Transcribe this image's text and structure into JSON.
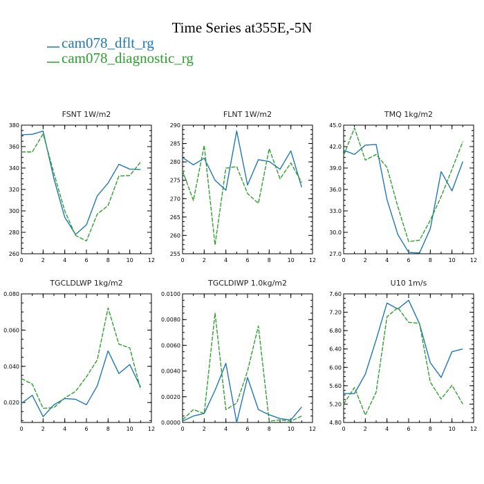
{
  "title": "Time Series at355E,-5N",
  "legend": [
    {
      "label": "cam078_dflt_rg",
      "color": "#1f77b4",
      "style": "solid"
    },
    {
      "label": "cam078_diagnostic_rg",
      "color": "#2ca02c",
      "style": "dashed"
    }
  ],
  "chart_data": [
    {
      "type": "line",
      "title": "FSNT   1W/m2",
      "xlim": [
        0,
        12
      ],
      "xticks": [
        0,
        2,
        4,
        6,
        8,
        10,
        12
      ],
      "ylim": [
        260,
        380
      ],
      "yticks": [
        "260",
        "280",
        "300",
        "320",
        "340",
        "360",
        "380"
      ],
      "x": [
        0,
        1,
        2,
        3,
        4,
        5,
        6,
        7,
        8,
        9,
        10,
        11
      ],
      "series": [
        {
          "name": "cam078_dflt_rg",
          "values": [
            371,
            371.5,
            374.5,
            330,
            294,
            278,
            287,
            314,
            326,
            343.5,
            339,
            338.5
          ]
        },
        {
          "name": "cam078_diagnostic_rg",
          "values": [
            355,
            355,
            372,
            335,
            300,
            277,
            272,
            297,
            305,
            332.5,
            333,
            345.5
          ]
        }
      ]
    },
    {
      "type": "line",
      "title": "FLNT   1W/m2",
      "xlim": [
        0,
        12
      ],
      "xticks": [
        0,
        2,
        4,
        6,
        8,
        10,
        12
      ],
      "ylim": [
        255,
        290
      ],
      "yticks": [
        "255",
        "260",
        "265",
        "270",
        "275",
        "280",
        "285",
        "290"
      ],
      "x": [
        0,
        1,
        2,
        3,
        4,
        5,
        6,
        7,
        8,
        9,
        10,
        11
      ],
      "series": [
        {
          "name": "cam078_dflt_rg",
          "values": [
            281.2,
            279.2,
            281,
            275,
            272.3,
            288.4,
            273.7,
            280.6,
            280.1,
            278,
            283,
            273.1
          ]
        },
        {
          "name": "cam078_diagnostic_rg",
          "values": [
            277.6,
            269.5,
            284.5,
            257.4,
            278.3,
            278.7,
            271.4,
            268.7,
            283.6,
            275.4,
            279.7,
            274.4
          ]
        }
      ]
    },
    {
      "type": "line",
      "title": "TMQ   1kg/m2",
      "xlim": [
        0,
        12
      ],
      "xticks": [
        0,
        2,
        4,
        6,
        8,
        10,
        12
      ],
      "ylim": [
        27.0,
        45.0
      ],
      "yticks": [
        "27.0",
        "30.0",
        "33.0",
        "36.0",
        "39.0",
        "42.0",
        "45.0"
      ],
      "x": [
        0,
        1,
        2,
        3,
        4,
        5,
        6,
        7,
        8,
        9,
        10,
        11
      ],
      "series": [
        {
          "name": "cam078_dflt_rg",
          "values": [
            41.5,
            40.9,
            42.2,
            42.3,
            34.6,
            29.7,
            27.2,
            27.1,
            30.5,
            38.5,
            35.8,
            39.9
          ]
        },
        {
          "name": "cam078_diagnostic_rg",
          "values": [
            40.8,
            44.6,
            40.1,
            40.9,
            39.1,
            33.6,
            28.7,
            28.9,
            31.7,
            35.0,
            38.8,
            42.7
          ]
        }
      ]
    },
    {
      "type": "line",
      "title": "TGCLDLWP   1kg/m2",
      "xlim": [
        0,
        12
      ],
      "xticks": [
        0,
        2,
        4,
        6,
        8,
        10,
        12
      ],
      "ylim": [
        0.009,
        0.08
      ],
      "yticks": [
        {
          "v": 0.02,
          "label": "0.020"
        },
        {
          "v": 0.04,
          "label": "0.040"
        },
        {
          "v": 0.06,
          "label": "0.060"
        },
        {
          "v": 0.08,
          "label": "0.080"
        }
      ],
      "x": [
        0,
        1,
        2,
        3,
        4,
        5,
        6,
        7,
        8,
        9,
        10,
        11
      ],
      "series": [
        {
          "name": "cam078_dflt_rg",
          "values": [
            0.0195,
            0.024,
            0.0122,
            0.0188,
            0.0222,
            0.0218,
            0.0188,
            0.0292,
            0.0485,
            0.036,
            0.041,
            0.0285
          ]
        },
        {
          "name": "cam078_diagnostic_rg",
          "values": [
            0.0332,
            0.0302,
            0.0168,
            0.0172,
            0.0225,
            0.0262,
            0.0342,
            0.0435,
            0.0722,
            0.0522,
            0.0502,
            0.0272
          ]
        }
      ]
    },
    {
      "type": "line",
      "title": "TGCLDIWP   1.0kg/m2",
      "xlim": [
        0,
        12
      ],
      "xticks": [
        0,
        2,
        4,
        6,
        8,
        10,
        12
      ],
      "ylim": [
        0,
        0.01
      ],
      "yticks": [
        "0.0000",
        "0.0020",
        "0.0040",
        "0.0060",
        "0.0080",
        "0.0100"
      ],
      "x": [
        0,
        1,
        2,
        3,
        4,
        5,
        6,
        7,
        8,
        9,
        10,
        11
      ],
      "series": [
        {
          "name": "cam078_dflt_rg",
          "values": [
            0.0001,
            0.0005,
            0.0007,
            0.0025,
            0.0046,
            0.0,
            0.0035,
            0.001,
            0.0006,
            0.0003,
            0.0002,
            0.0012
          ]
        },
        {
          "name": "cam078_diagnostic_rg",
          "values": [
            0.0002,
            0.001,
            0.0007,
            0.0085,
            0.001,
            0.0015,
            0.004,
            0.0075,
            0.0001,
            0.0002,
            0.0001,
            0.0005
          ]
        }
      ]
    },
    {
      "type": "line",
      "title": "U10   1m/s",
      "xlim": [
        0,
        12
      ],
      "xticks": [
        0,
        2,
        4,
        6,
        8,
        10,
        12
      ],
      "ylim": [
        4.8,
        7.6
      ],
      "yticks": [
        "4.80",
        "5.20",
        "5.60",
        "6.00",
        "6.40",
        "6.80",
        "7.20",
        "7.60"
      ],
      "x": [
        0,
        1,
        2,
        3,
        4,
        5,
        6,
        7,
        8,
        9,
        10,
        11
      ],
      "series": [
        {
          "name": "cam078_dflt_rg",
          "values": [
            5.43,
            5.43,
            5.85,
            6.6,
            7.4,
            7.27,
            7.46,
            6.95,
            6.1,
            5.78,
            6.34,
            6.4
          ]
        },
        {
          "name": "cam078_diagnostic_rg",
          "values": [
            5.2,
            5.56,
            4.96,
            5.46,
            7.1,
            7.3,
            6.98,
            6.96,
            5.68,
            5.31,
            5.61,
            5.2
          ]
        }
      ]
    }
  ]
}
